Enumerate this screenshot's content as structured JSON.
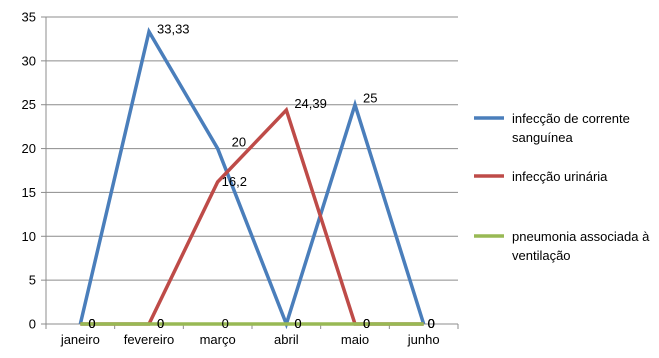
{
  "chart_data": {
    "type": "line",
    "title": "",
    "xlabel": "",
    "ylabel": "",
    "categories": [
      "janeiro",
      "fevereiro",
      "março",
      "abril",
      "maio",
      "junho"
    ],
    "ylim": [
      0,
      35
    ],
    "yticks": [
      0,
      5,
      10,
      15,
      20,
      25,
      30,
      35
    ],
    "grid": "horizontal",
    "legend_position": "right",
    "series": [
      {
        "name": "infecção de corrente sanguínea",
        "legend_lines": [
          "infecção de corrente",
          "sanguínea"
        ],
        "color": "#4a7ebb",
        "values": [
          0,
          33.33,
          20,
          0,
          25,
          0
        ],
        "labels": [
          "0",
          "33,33",
          "20",
          "0",
          "25",
          "0"
        ]
      },
      {
        "name": "infecção urinária",
        "legend_lines": [
          "infecção urinária"
        ],
        "color": "#be4b48",
        "values": [
          0,
          0,
          16.2,
          24.39,
          0,
          0
        ],
        "labels": [
          "0",
          "0",
          "16,2",
          "24,39",
          "0",
          "0"
        ]
      },
      {
        "name": "pneumonia associada à ventilação",
        "legend_lines": [
          "pneumonia associada à",
          "ventilação"
        ],
        "color": "#98b954",
        "values": [
          0,
          0,
          0,
          0,
          0,
          0
        ],
        "labels": [
          "0",
          "0",
          "0",
          "0",
          "0",
          "0"
        ]
      }
    ]
  }
}
